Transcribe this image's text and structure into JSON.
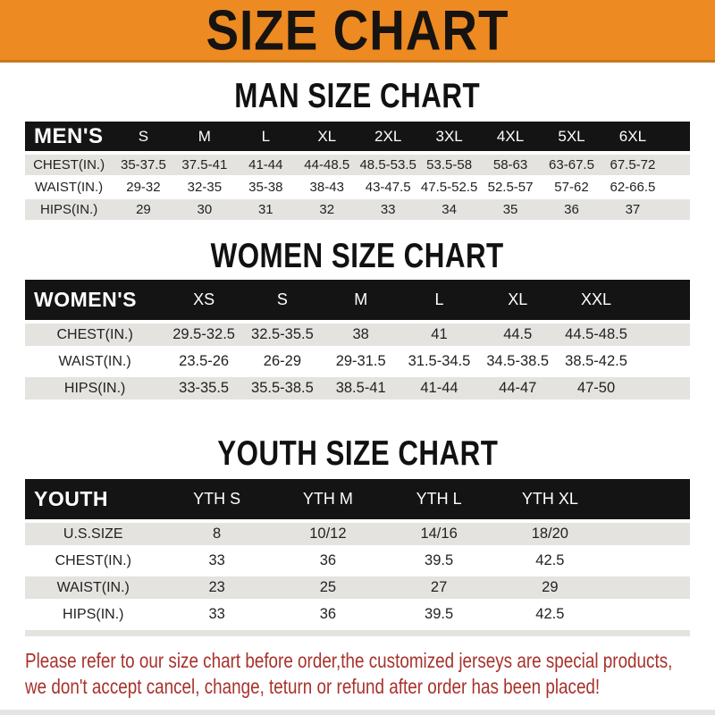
{
  "banner": {
    "title": "SIZE CHART"
  },
  "colors": {
    "banner_bg": "#ED8A21",
    "header_bar": "#141414",
    "stripe": "#E4E3E0",
    "disclaimer_red": "#A8322C"
  },
  "tables": {
    "men": {
      "heading": "MAN SIZE CHART",
      "header_label": "MEN'S",
      "columns": [
        "S",
        "M",
        "L",
        "XL",
        "2XL",
        "3XL",
        "4XL",
        "5XL",
        "6XL"
      ],
      "rows": [
        {
          "label": "CHEST(IN.)",
          "values": [
            "35-37.5",
            "37.5-41",
            "41-44",
            "44-48.5",
            "48.5-53.5",
            "53.5-58",
            "58-63",
            "63-67.5",
            "67.5-72"
          ]
        },
        {
          "label": "WAIST(IN.)",
          "values": [
            "29-32",
            "32-35",
            "35-38",
            "38-43",
            "43-47.5",
            "47.5-52.5",
            "52.5-57",
            "57-62",
            "62-66.5"
          ]
        },
        {
          "label": "HIPS(IN.)",
          "values": [
            "29",
            "30",
            "31",
            "32",
            "33",
            "34",
            "35",
            "36",
            "37"
          ]
        }
      ]
    },
    "women": {
      "heading": "WOMEN SIZE CHART",
      "header_label": "WOMEN'S",
      "columns": [
        "XS",
        "S",
        "M",
        "L",
        "XL",
        "XXL"
      ],
      "rows": [
        {
          "label": "CHEST(IN.)",
          "values": [
            "29.5-32.5",
            "32.5-35.5",
            "38",
            "41",
            "44.5",
            "44.5-48.5"
          ]
        },
        {
          "label": "WAIST(IN.)",
          "values": [
            "23.5-26",
            "26-29",
            "29-31.5",
            "31.5-34.5",
            "34.5-38.5",
            "38.5-42.5"
          ]
        },
        {
          "label": "HIPS(IN.)",
          "values": [
            "33-35.5",
            "35.5-38.5",
            "38.5-41",
            "41-44",
            "44-47",
            "47-50"
          ]
        }
      ]
    },
    "youth": {
      "heading": "YOUTH SIZE CHART",
      "header_label": "YOUTH",
      "columns": [
        "YTH S",
        "YTH M",
        "YTH L",
        "YTH XL"
      ],
      "rows": [
        {
          "label": "U.S.SIZE",
          "values": [
            "8",
            "10/12",
            "14/16",
            "18/20"
          ]
        },
        {
          "label": "CHEST(IN.)",
          "values": [
            "33",
            "36",
            "39.5",
            "42.5"
          ]
        },
        {
          "label": "WAIST(IN.)",
          "values": [
            "23",
            "25",
            "27",
            "29"
          ]
        },
        {
          "label": "HIPS(IN.)",
          "values": [
            "33",
            "36",
            "39.5",
            "42.5"
          ]
        }
      ]
    }
  },
  "disclaimer": {
    "line1": "Please refer to our size chart before order,the customized jerseys are special products,",
    "line2": "we don't accept cancel, change, teturn or refund after order has been placed!"
  }
}
